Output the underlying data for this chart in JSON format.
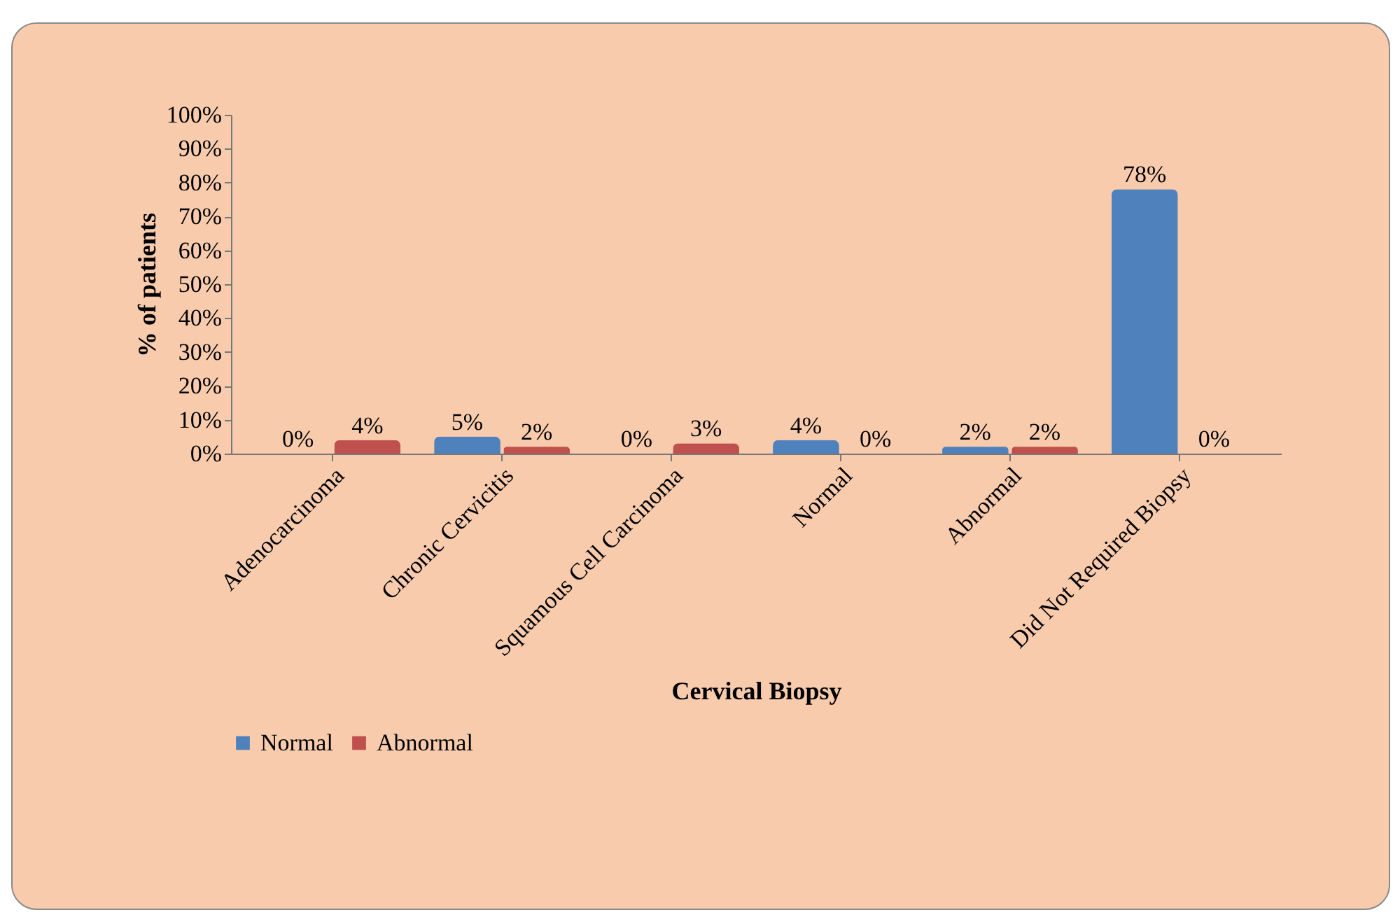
{
  "chart_data": {
    "type": "bar",
    "xlabel": "Cervical Biopsy",
    "ylabel": "% of patients",
    "categories": [
      "Adenocarcinoma",
      "Chronic Cervicitis",
      "Squamous Cell Carcinoma",
      "Normal",
      "Abnormal",
      "Did Not Required Biopsy"
    ],
    "series": [
      {
        "name": "Normal",
        "color": "#4f81bd",
        "values": [
          0,
          5,
          0,
          4,
          2,
          78
        ],
        "value_labels": [
          "0%",
          "5%",
          "0%",
          "4%",
          "2%",
          "78%"
        ]
      },
      {
        "name": "Abnormal",
        "color": "#c0504d",
        "values": [
          4,
          2,
          3,
          0,
          2,
          0
        ],
        "value_labels": [
          "4%",
          "2%",
          "3%",
          "0%",
          "2%",
          "0%"
        ]
      }
    ],
    "ylim": [
      0,
      100
    ],
    "yticks": [
      {
        "value": 0,
        "label": "0%"
      },
      {
        "value": 10,
        "label": "10%"
      },
      {
        "value": 20,
        "label": "20%"
      },
      {
        "value": 30,
        "label": "30%"
      },
      {
        "value": 40,
        "label": "40%"
      },
      {
        "value": 50,
        "label": "50%"
      },
      {
        "value": 60,
        "label": "60%"
      },
      {
        "value": 70,
        "label": "70%"
      },
      {
        "value": 80,
        "label": "80%"
      },
      {
        "value": 90,
        "label": "90%"
      },
      {
        "value": 100,
        "label": "100%"
      }
    ],
    "grid": false,
    "legend": "bottom"
  }
}
